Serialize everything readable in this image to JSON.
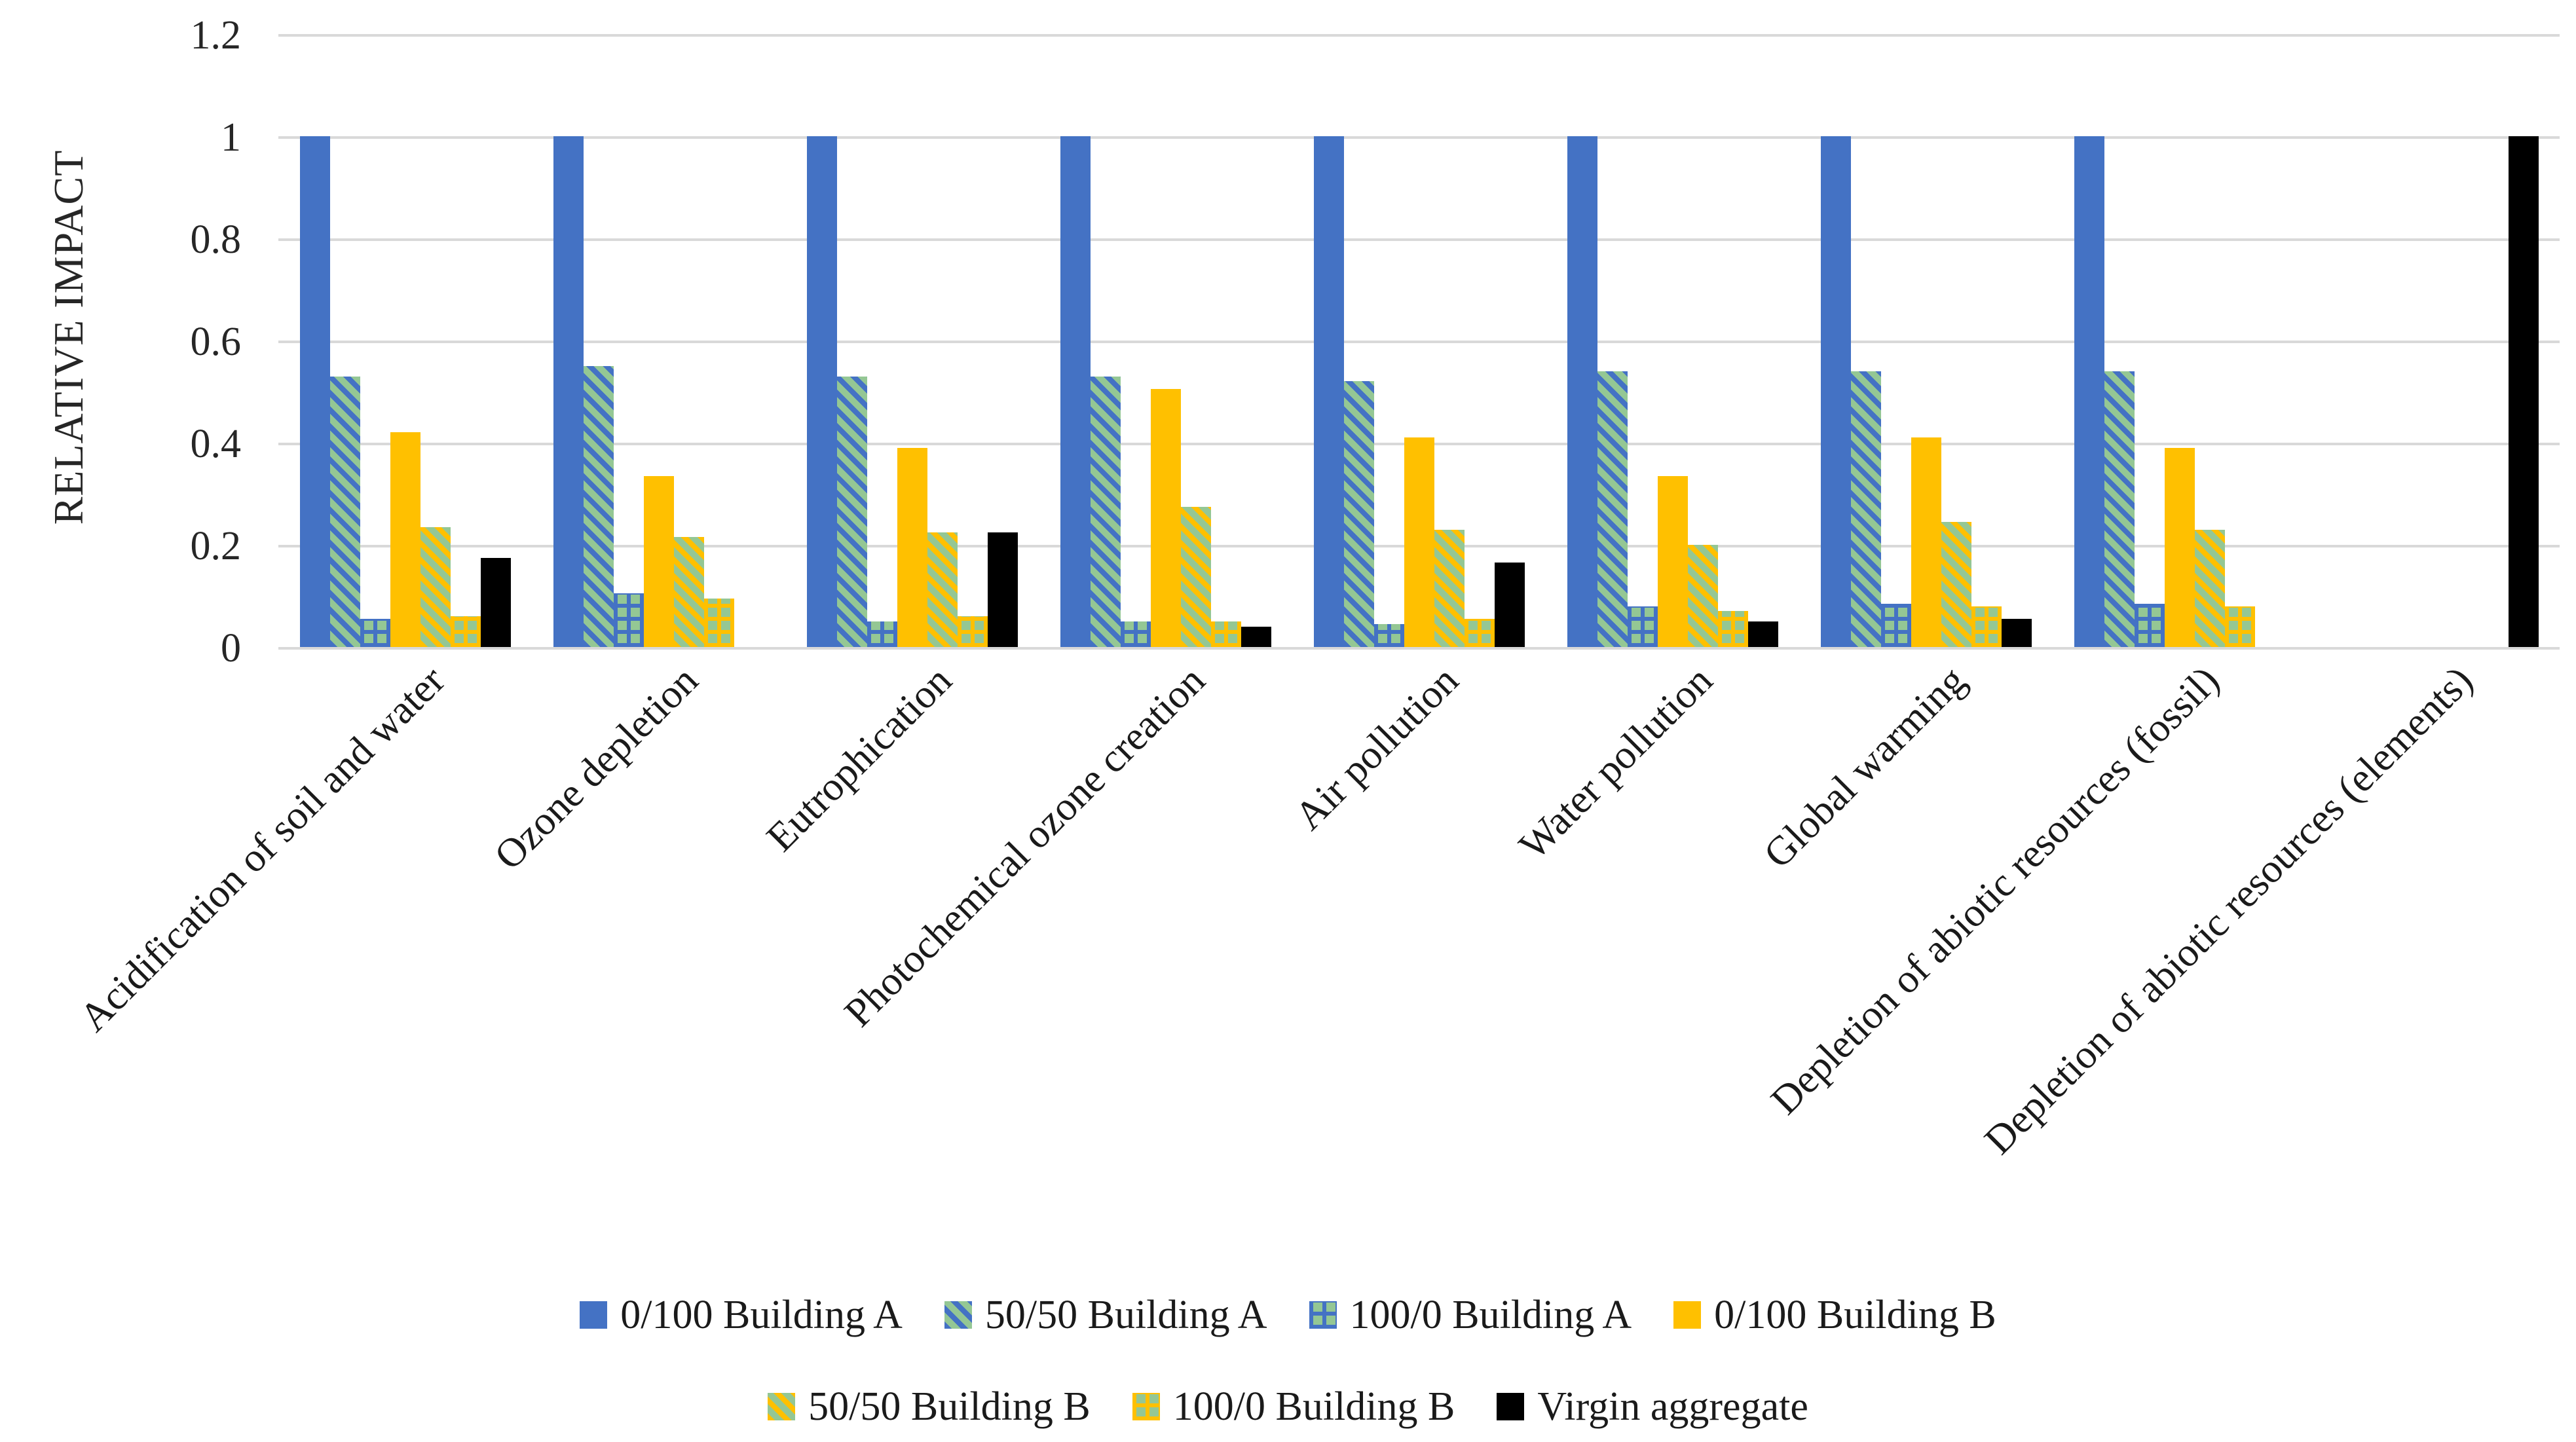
{
  "chart_data": {
    "type": "bar",
    "title": "",
    "ylabel": "RELATIVE IMPACT",
    "ylim": [
      0,
      1.2
    ],
    "yticks": [
      "1.2",
      "1",
      "0.8",
      "0.6",
      "0.4",
      "0.2",
      "0"
    ],
    "grid": true,
    "legend_position": "bottom",
    "categories": [
      "Acidification of soil and water",
      "Ozone depletion",
      "Eutrophication",
      "Photochemical ozone creation",
      "Air pollution",
      "Water pollution",
      "Global warming",
      "Depletion of abiotic resources (fossil)",
      "Depletion of abiotic resources (elements)"
    ],
    "series": [
      {
        "name": "0/100 Building A",
        "pattern": {
          "fill": "solid",
          "color": "#4472C4"
        },
        "values": [
          1,
          1,
          1,
          1,
          1,
          1,
          1,
          1,
          0
        ]
      },
      {
        "name": "50/50 Building A",
        "pattern": {
          "fill": "diagonal",
          "bg": "#94C794",
          "fg": "#4472C4"
        },
        "values": [
          0.53,
          0.55,
          0.53,
          0.53,
          0.52,
          0.54,
          0.54,
          0.54,
          0
        ]
      },
      {
        "name": "100/0 Building A",
        "pattern": {
          "fill": "grid",
          "bg": "#94C794",
          "fg": "#4472C4"
        },
        "values": [
          0.055,
          0.105,
          0.05,
          0.05,
          0.045,
          0.08,
          0.085,
          0.085,
          0
        ]
      },
      {
        "name": "0/100 Building B",
        "pattern": {
          "fill": "solid",
          "color": "#FFC000"
        },
        "values": [
          0.42,
          0.335,
          0.39,
          0.505,
          0.41,
          0.335,
          0.41,
          0.39,
          0
        ]
      },
      {
        "name": "50/50 Building B",
        "pattern": {
          "fill": "diagonal",
          "bg": "#94C794",
          "fg": "#FFC000"
        },
        "values": [
          0.235,
          0.215,
          0.225,
          0.275,
          0.23,
          0.2,
          0.245,
          0.23,
          0
        ]
      },
      {
        "name": "100/0 Building B",
        "pattern": {
          "fill": "grid",
          "bg": "#94C794",
          "fg": "#FFC000"
        },
        "values": [
          0.06,
          0.095,
          0.06,
          0.05,
          0.055,
          0.07,
          0.08,
          0.08,
          0
        ]
      },
      {
        "name": "Virgin aggregate",
        "pattern": {
          "fill": "solid",
          "color": "#000000"
        },
        "values": [
          0.175,
          0,
          0.225,
          0.04,
          0.165,
          0.05,
          0.055,
          0,
          1
        ]
      }
    ],
    "legend_rows": [
      [
        0,
        1,
        2,
        3
      ],
      [
        4,
        5,
        6
      ]
    ],
    "colors": {
      "gridline": "#D9D9D9",
      "text": "#262626",
      "background": "#FFFFFF"
    }
  }
}
